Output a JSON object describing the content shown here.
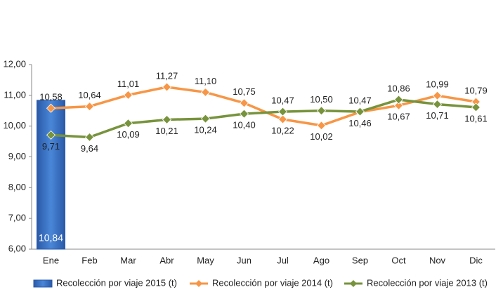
{
  "chart_data": {
    "type": "bar_line",
    "categories": [
      "Ene",
      "Feb",
      "Mar",
      "Abr",
      "May",
      "Jun",
      "Jul",
      "Ago",
      "Sep",
      "Oct",
      "Nov",
      "Dic"
    ],
    "series": [
      {
        "name": "Recolección por viaje 2015 (t)",
        "type": "bar",
        "color": "#3a6fc0",
        "values": [
          10.84,
          null,
          null,
          null,
          null,
          null,
          null,
          null,
          null,
          null,
          null,
          null
        ],
        "value_labels": [
          "10,84",
          null,
          null,
          null,
          null,
          null,
          null,
          null,
          null,
          null,
          null,
          null
        ]
      },
      {
        "name": "Recolección por viaje 2014 (t)",
        "type": "line",
        "color": "#f79646",
        "values": [
          10.58,
          10.64,
          11.01,
          11.27,
          11.1,
          10.75,
          10.22,
          10.02,
          10.46,
          10.67,
          10.99,
          10.79
        ],
        "value_labels": [
          "10,58",
          "10,64",
          "11,01",
          "11,27",
          "11,10",
          "10,75",
          "10,22",
          "10,02",
          "10,46",
          "10,67",
          "10,99",
          "10,79"
        ]
      },
      {
        "name": "Recolección por viaje 2013 (t)",
        "type": "line",
        "color": "#77933c",
        "values": [
          9.71,
          9.64,
          10.09,
          10.21,
          10.24,
          10.4,
          10.47,
          10.5,
          10.47,
          10.86,
          10.71,
          10.61
        ],
        "value_labels": [
          "9,71",
          "9,64",
          "10,09",
          "10,21",
          "10,24",
          "10,40",
          "10,47",
          "10,50",
          "10,47",
          "10,86",
          "10,71",
          "10,61"
        ]
      }
    ],
    "ylim": [
      6,
      12
    ],
    "yticks": [
      {
        "value": 6,
        "label": "6,00"
      },
      {
        "value": 7,
        "label": "7,00"
      },
      {
        "value": 8,
        "label": "8,00"
      },
      {
        "value": 9,
        "label": "9,00"
      },
      {
        "value": 10,
        "label": "10,00"
      },
      {
        "value": 11,
        "label": "11,00"
      },
      {
        "value": 12,
        "label": "12,00"
      }
    ],
    "legend": "bottom"
  }
}
